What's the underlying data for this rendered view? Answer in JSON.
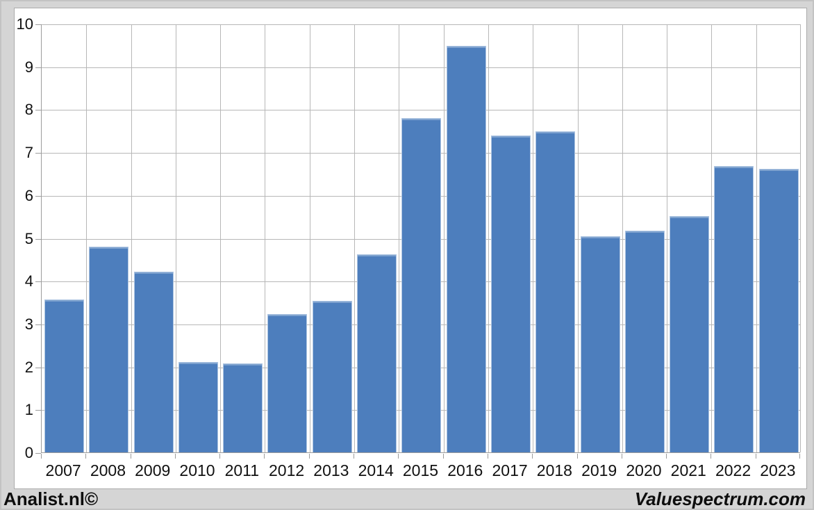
{
  "chart_data": {
    "type": "bar",
    "title": "",
    "xlabel": "",
    "ylabel": "",
    "categories": [
      "2007",
      "2008",
      "2009",
      "2010",
      "2011",
      "2012",
      "2013",
      "2014",
      "2015",
      "2016",
      "2017",
      "2018",
      "2019",
      "2020",
      "2021",
      "2022",
      "2023"
    ],
    "values": [
      3.57,
      4.79,
      4.21,
      2.11,
      2.07,
      3.22,
      3.53,
      4.62,
      7.79,
      9.48,
      7.39,
      7.49,
      5.04,
      5.17,
      5.51,
      6.67,
      6.62
    ],
    "ylim": [
      0,
      10
    ],
    "y_ticks": [
      0,
      1,
      2,
      3,
      4,
      5,
      6,
      7,
      8,
      9,
      10
    ],
    "grid": "both",
    "legend_position": "none",
    "bar_color": "#4d7ebd"
  },
  "colors": {
    "bar": "#4d7ebd",
    "gridline": "#b7b7b7",
    "axis": "#9c9c9c",
    "plot_background": "#ffffff",
    "outer_background": "#d5d5d5",
    "text": "#111111"
  },
  "footer": {
    "left_brand": "Analist.nl©",
    "right_brand": "Valuespectrum.com"
  }
}
